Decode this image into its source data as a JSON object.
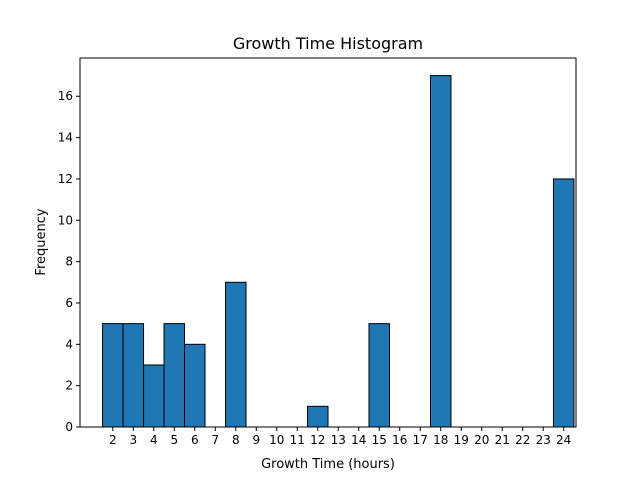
{
  "chart_data": {
    "type": "bar",
    "title": "Growth Time Histogram",
    "xlabel": "Growth Time (hours)",
    "ylabel": "Frequency",
    "x_ticks": [
      2,
      3,
      4,
      5,
      6,
      7,
      8,
      9,
      10,
      11,
      12,
      13,
      14,
      15,
      16,
      17,
      18,
      19,
      20,
      21,
      22,
      23,
      24
    ],
    "y_ticks": [
      0,
      2,
      4,
      6,
      8,
      10,
      12,
      14,
      16
    ],
    "xlim": [
      0.9,
      25.1
    ],
    "ylim": [
      0,
      17.85
    ],
    "grid": false,
    "bar_color": "#1f77b4",
    "edge_color": "#000000",
    "bins": [
      {
        "start": 2.0,
        "end": 3.0,
        "count": 5
      },
      {
        "start": 3.0,
        "end": 4.0,
        "count": 5
      },
      {
        "start": 4.0,
        "end": 5.0,
        "count": 3
      },
      {
        "start": 5.0,
        "end": 6.0,
        "count": 5
      },
      {
        "start": 6.0,
        "end": 7.0,
        "count": 4
      },
      {
        "start": 7.0,
        "end": 8.0,
        "count": 0
      },
      {
        "start": 8.0,
        "end": 9.0,
        "count": 7
      },
      {
        "start": 9.0,
        "end": 10.0,
        "count": 0
      },
      {
        "start": 10.0,
        "end": 11.0,
        "count": 0
      },
      {
        "start": 11.0,
        "end": 12.0,
        "count": 0
      },
      {
        "start": 12.0,
        "end": 13.0,
        "count": 1
      },
      {
        "start": 13.0,
        "end": 14.0,
        "count": 0
      },
      {
        "start": 14.0,
        "end": 15.0,
        "count": 0
      },
      {
        "start": 15.0,
        "end": 16.0,
        "count": 5
      },
      {
        "start": 16.0,
        "end": 17.0,
        "count": 0
      },
      {
        "start": 17.0,
        "end": 18.0,
        "count": 0
      },
      {
        "start": 18.0,
        "end": 19.0,
        "count": 17
      },
      {
        "start": 19.0,
        "end": 20.0,
        "count": 0
      },
      {
        "start": 20.0,
        "end": 21.0,
        "count": 0
      },
      {
        "start": 21.0,
        "end": 22.0,
        "count": 0
      },
      {
        "start": 22.0,
        "end": 23.0,
        "count": 0
      },
      {
        "start": 23.0,
        "end": 24.0,
        "count": 0
      },
      {
        "start": 24.0,
        "end": 25.0,
        "count": 12
      }
    ]
  }
}
